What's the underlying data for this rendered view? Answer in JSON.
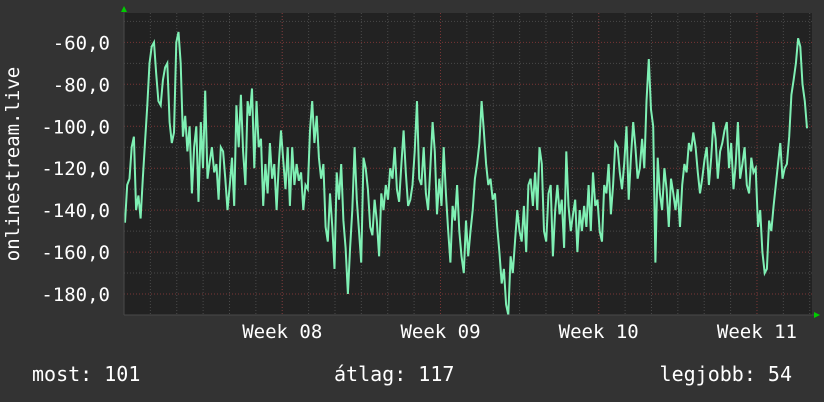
{
  "colors": {
    "background": "#333333",
    "plot_background": "#222222",
    "grid_major": "#7a3535",
    "grid_minor": "#4a4a4a",
    "line": "#7ff0b4",
    "axis_arrow": "#00cc00",
    "text": "#ffffff"
  },
  "chart_data": {
    "type": "line",
    "ylabel": "onlinestream.live",
    "ylim": [
      -190,
      -46
    ],
    "y_ticks": [
      -60,
      -80,
      -100,
      -120,
      -140,
      -160,
      -180
    ],
    "y_tick_labels": [
      "-60,0",
      "-80,0",
      "-100,0",
      "-120,0",
      "-140,0",
      "-160,0",
      "-180,0"
    ],
    "xlim": [
      0,
      100
    ],
    "x_ticks": [
      23,
      46,
      69,
      92
    ],
    "x_tick_labels": [
      "Week 08",
      "Week 09",
      "Week 10",
      "Week 11"
    ],
    "grid": true,
    "series": [
      {
        "values": [
          -146,
          -128,
          -125,
          -110,
          -105,
          -140,
          -133,
          -144,
          -125,
          -107,
          -90,
          -70,
          -62,
          -60,
          -75,
          -88,
          -90,
          -78,
          -72,
          -70,
          -98,
          -108,
          -103,
          -60,
          -55,
          -70,
          -105,
          -95,
          -112,
          -100,
          -132,
          -110,
          -100,
          -136,
          -98,
          -120,
          -83,
          -125,
          -117,
          -110,
          -122,
          -118,
          -135,
          -110,
          -112,
          -125,
          -140,
          -128,
          -115,
          -138,
          -90,
          -110,
          -85,
          -112,
          -128,
          -88,
          -95,
          -82,
          -120,
          -88,
          -110,
          -106,
          -138,
          -118,
          -132,
          -108,
          -125,
          -118,
          -140,
          -118,
          -102,
          -116,
          -130,
          -110,
          -138,
          -110,
          -128,
          -118,
          -126,
          -122,
          -140,
          -128,
          -130,
          -102,
          -88,
          -108,
          -95,
          -115,
          -125,
          -118,
          -148,
          -155,
          -132,
          -148,
          -168,
          -122,
          -135,
          -118,
          -145,
          -158,
          -180,
          -158,
          -140,
          -110,
          -135,
          -150,
          -165,
          -115,
          -120,
          -130,
          -148,
          -152,
          -135,
          -145,
          -162,
          -132,
          -140,
          -128,
          -135,
          -120,
          -125,
          -110,
          -130,
          -136,
          -118,
          -102,
          -122,
          -138,
          -135,
          -128,
          -112,
          -88,
          -125,
          -128,
          -110,
          -132,
          -140,
          -120,
          -98,
          -112,
          -142,
          -125,
          -138,
          -110,
          -132,
          -150,
          -165,
          -138,
          -145,
          -128,
          -150,
          -162,
          -170,
          -145,
          -162,
          -150,
          -140,
          -125,
          -118,
          -108,
          -88,
          -102,
          -118,
          -128,
          -125,
          -135,
          -132,
          -148,
          -160,
          -175,
          -168,
          -185,
          -190,
          -162,
          -170,
          -155,
          -140,
          -150,
          -155,
          -138,
          -160,
          -128,
          -125,
          -138,
          -122,
          -140,
          -110,
          -118,
          -150,
          -155,
          -132,
          -128,
          -162,
          -140,
          -128,
          -142,
          -135,
          -158,
          -112,
          -138,
          -150,
          -142,
          -135,
          -160,
          -140,
          -150,
          -138,
          -148,
          -128,
          -150,
          -122,
          -138,
          -135,
          -150,
          -155,
          -128,
          -132,
          -118,
          -142,
          -128,
          -108,
          -110,
          -122,
          -130,
          -118,
          -100,
          -135,
          -115,
          -98,
          -110,
          -125,
          -120,
          -106,
          -120,
          -88,
          -68,
          -92,
          -100,
          -165,
          -115,
          -132,
          -140,
          -120,
          -130,
          -148,
          -125,
          -132,
          -140,
          -130,
          -148,
          -128,
          -118,
          -122,
          -108,
          -112,
          -103,
          -110,
          -122,
          -132,
          -125,
          -116,
          -110,
          -128,
          -115,
          -98,
          -106,
          -125,
          -112,
          -108,
          -102,
          -98,
          -120,
          -108,
          -130,
          -118,
          -98,
          -125,
          -118,
          -110,
          -128,
          -132,
          -115,
          -122,
          -120,
          -148,
          -140,
          -160,
          -170,
          -168,
          -145,
          -150,
          -138,
          -128,
          -118,
          -108,
          -125,
          -120,
          -118,
          -105,
          -85,
          -78,
          -70,
          -58,
          -62,
          -80,
          -88,
          -101
        ]
      }
    ]
  },
  "footer": {
    "current": "most: 101",
    "average": "átlag: 117",
    "best": "legjobb: 54"
  }
}
